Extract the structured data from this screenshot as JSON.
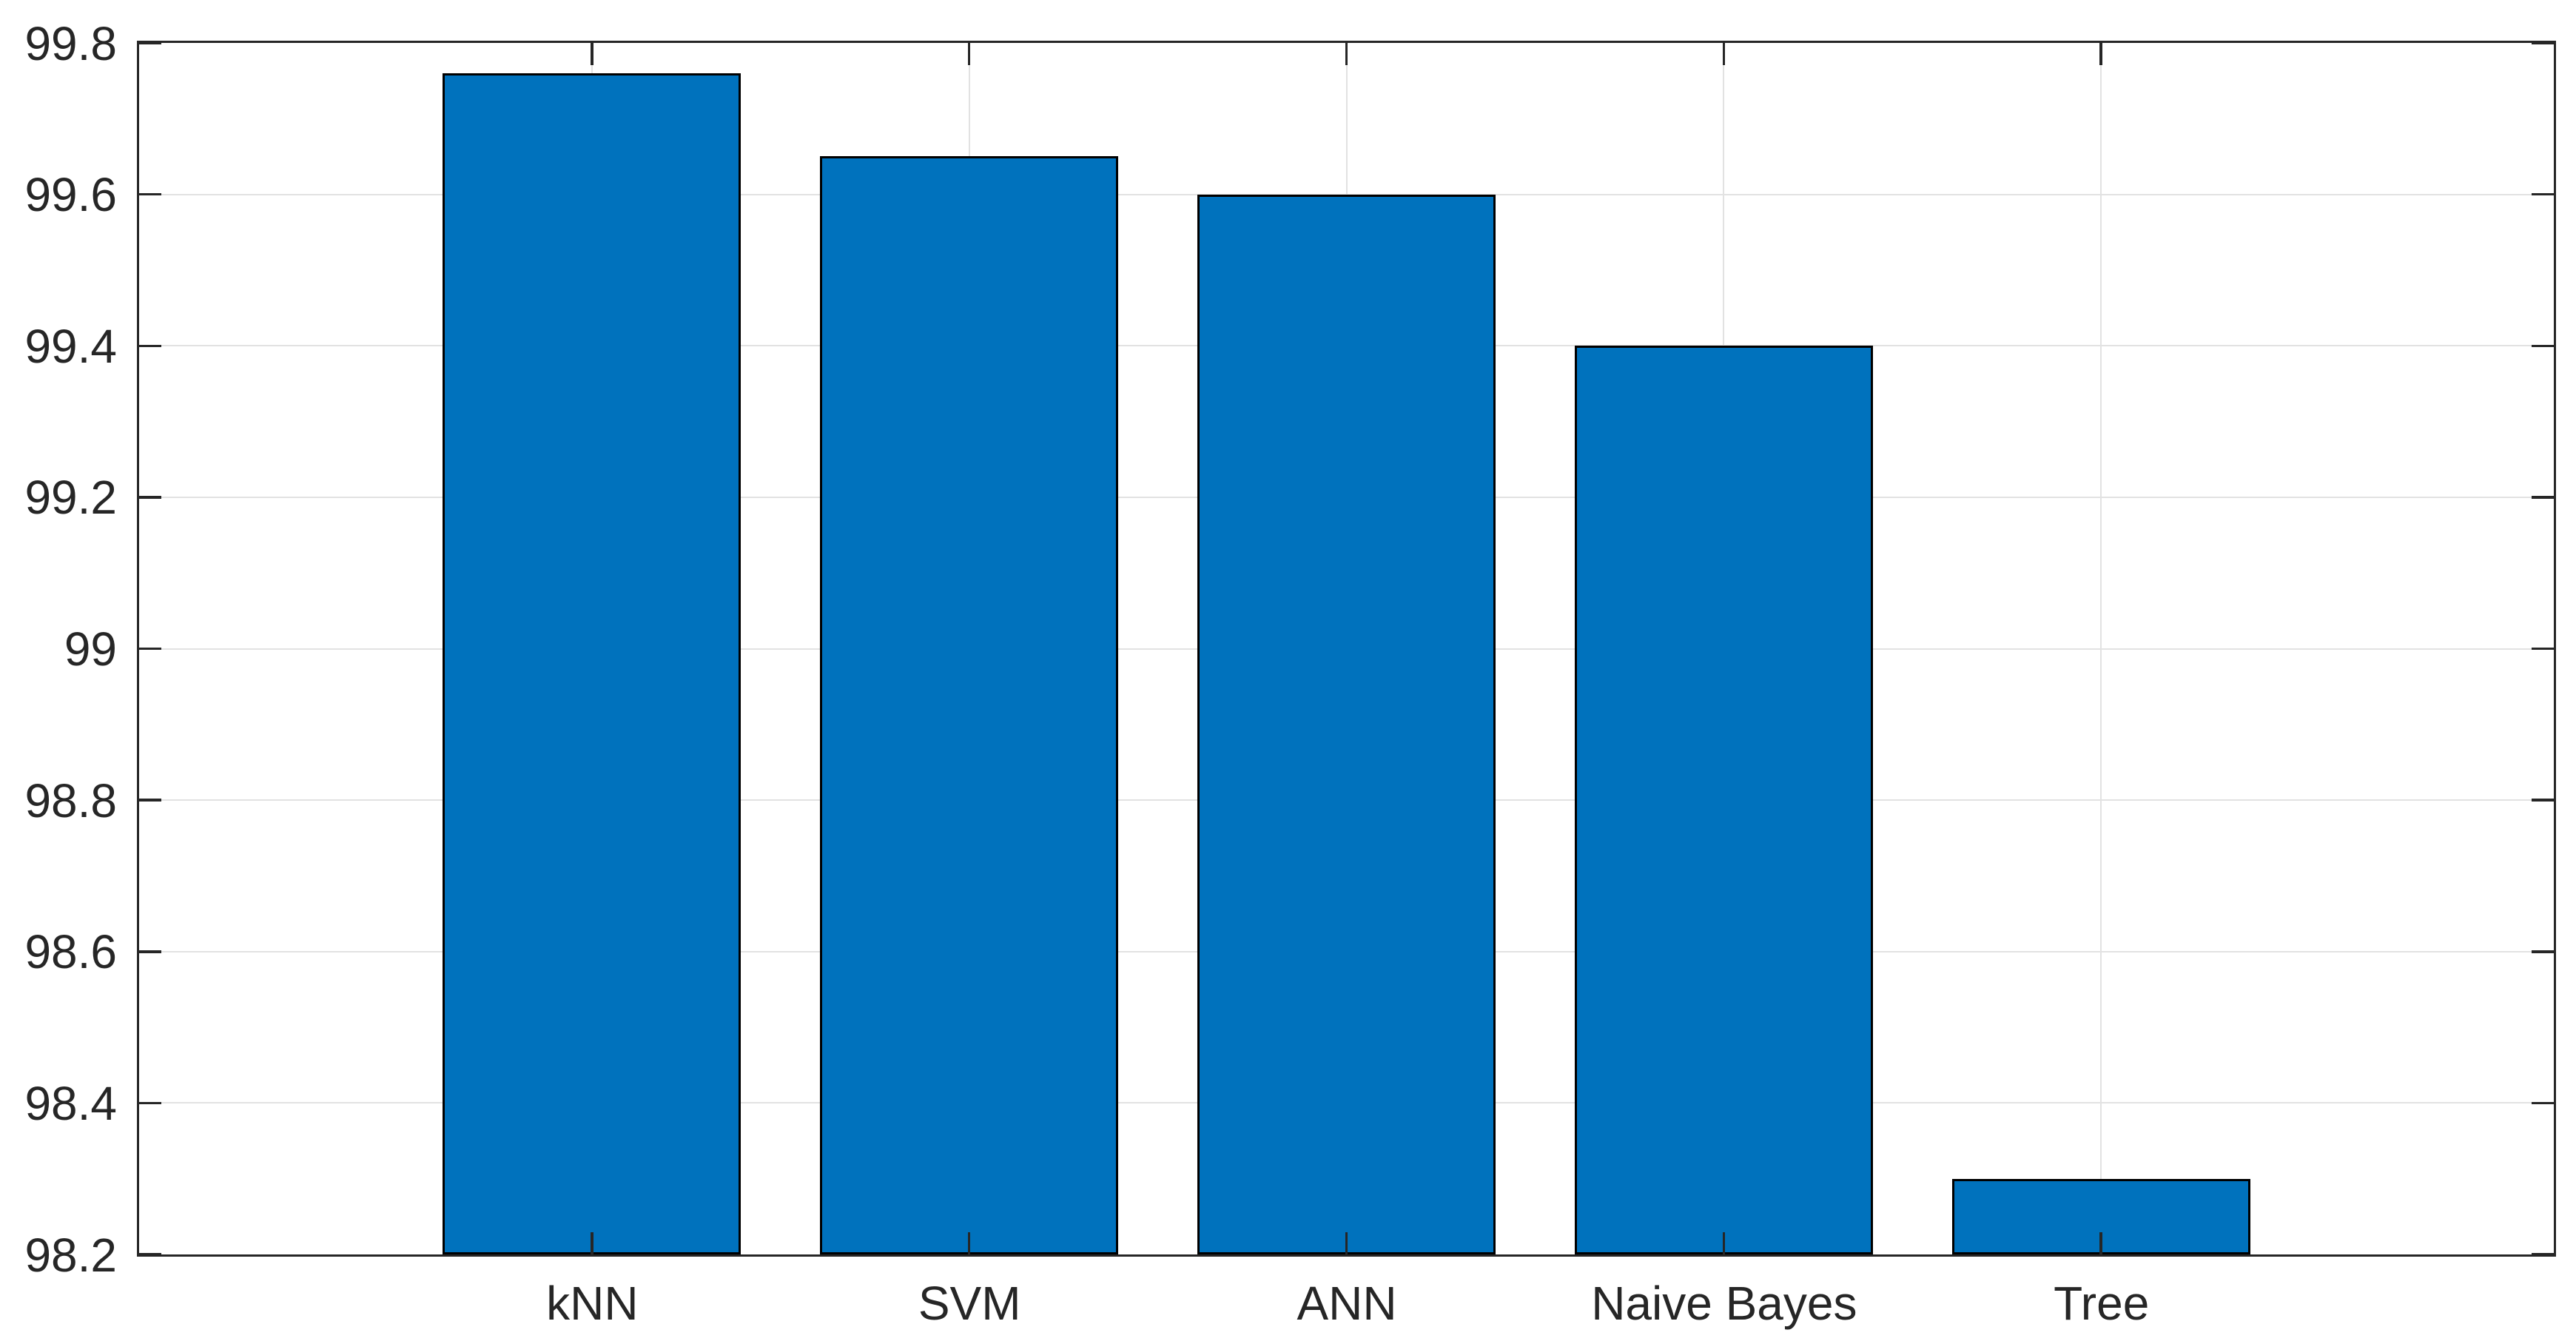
{
  "chart_data": {
    "type": "bar",
    "categories": [
      "kNN",
      "SVM",
      "ANN",
      "Naive Bayes",
      "Tree"
    ],
    "values": [
      99.76,
      99.65,
      99.6,
      99.4,
      98.3
    ],
    "title": "",
    "xlabel": "",
    "ylabel": "",
    "ylim": [
      98.2,
      99.8
    ],
    "ytick_step": 0.2,
    "ytick_labels": [
      "98.2",
      "98.4",
      "98.6",
      "98.8",
      "99",
      "99.2",
      "99.4",
      "99.6",
      "99.8"
    ],
    "grid": "on",
    "legend": "none",
    "colors": {
      "bar_fill": "#0072BD",
      "bar_edge": "#000000",
      "axis": "#262626",
      "grid_line": "#e2e2e2",
      "tick_label": "#262626",
      "background": "#ffffff"
    }
  }
}
